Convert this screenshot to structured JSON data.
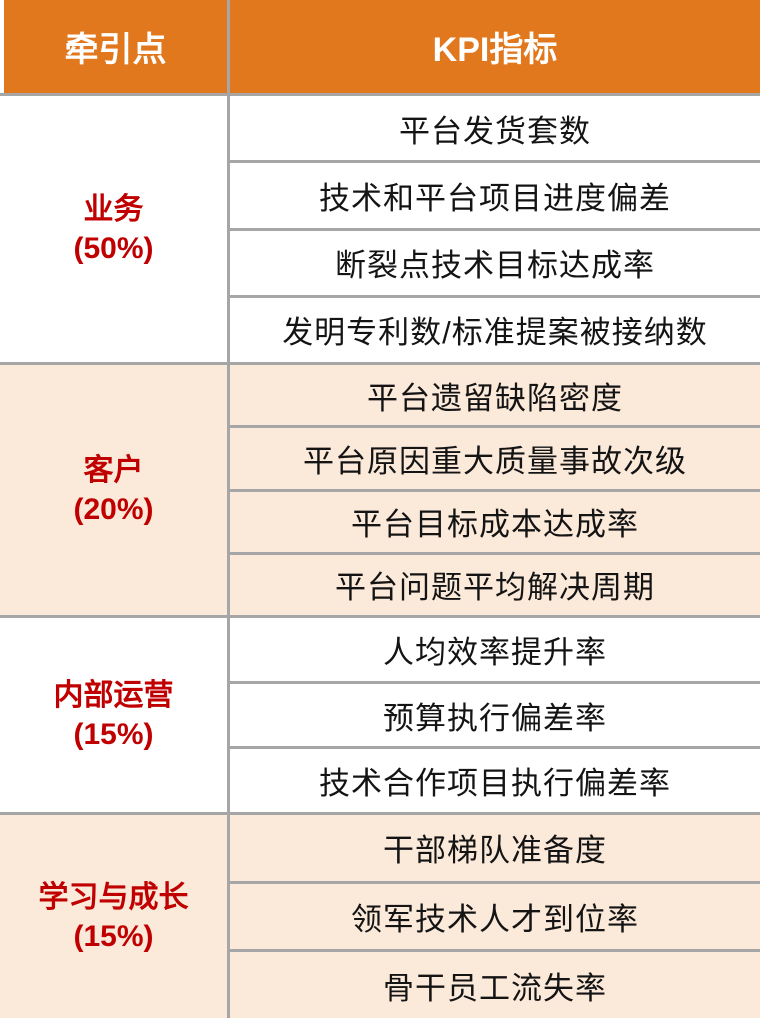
{
  "header": {
    "col1": "牵引点",
    "col2": "KPI指标"
  },
  "colors": {
    "header_bg": "#E2781E",
    "header_text": "#FFFFFF",
    "group_label_text": "#C00000",
    "peach_row_bg": "#FBE9DA",
    "white_row_bg": "#FFFFFF",
    "grid_line": "#A6A6A6",
    "kpi_text": "#141414"
  },
  "groups": [
    {
      "label": "业务",
      "weight": "(50%)",
      "kpis": [
        "平台发货套数",
        "技术和平台项目进度偏差",
        "断裂点技术目标达成率",
        "发明专利数/标准提案被接纳数"
      ]
    },
    {
      "label": "客户",
      "weight": "(20%)",
      "kpis": [
        "平台遗留缺陷密度",
        "平台原因重大质量事故次级",
        "平台目标成本达成率",
        "平台问题平均解决周期"
      ]
    },
    {
      "label": "内部运营",
      "weight": "(15%)",
      "kpis": [
        "人均效率提升率",
        "预算执行偏差率",
        "技术合作项目执行偏差率"
      ]
    },
    {
      "label": "学习与成长",
      "weight": "(15%)",
      "kpis": [
        "干部梯队准备度",
        "领军技术人才到位率",
        "骨干员工流失率"
      ]
    }
  ]
}
